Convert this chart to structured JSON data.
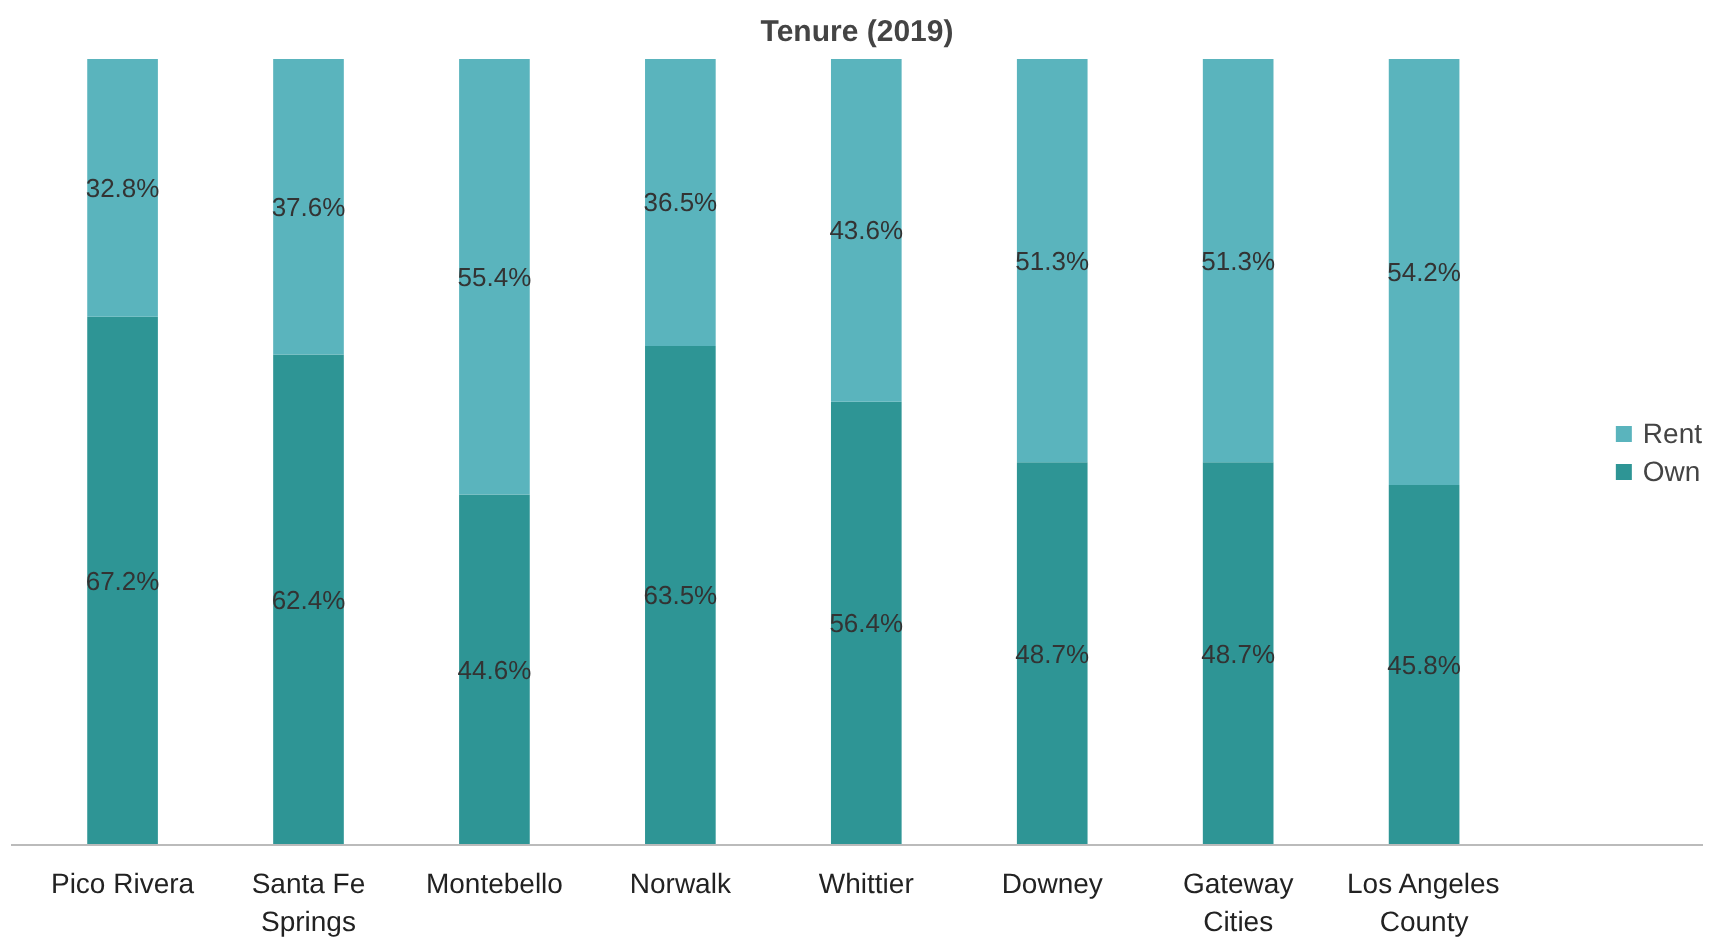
{
  "chart_data": {
    "type": "bar",
    "title": "Tenure (2019)",
    "stacked": true,
    "categories": [
      "Pico Rivera",
      "Santa Fe Springs",
      "Montebello",
      "Norwalk",
      "Whittier",
      "Downey",
      "Gateway Cities",
      "Los Angeles County"
    ],
    "series": [
      {
        "name": "Own",
        "color": "#2e9595",
        "values": [
          67.2,
          62.4,
          44.6,
          63.5,
          56.4,
          48.7,
          48.7,
          45.8
        ],
        "value_labels": [
          "67.2%",
          "62.4%",
          "44.6%",
          "63.5%",
          "56.4%",
          "48.7%",
          "48.7%",
          "45.8%"
        ]
      },
      {
        "name": "Rent",
        "color": "#5ab4bd",
        "values": [
          32.8,
          37.6,
          55.4,
          36.5,
          43.6,
          51.3,
          51.3,
          54.2
        ],
        "value_labels": [
          "32.8%",
          "37.6%",
          "55.4%",
          "36.5%",
          "43.6%",
          "51.3%",
          "51.3%",
          "54.2%"
        ]
      }
    ],
    "ylim": [
      0,
      100
    ],
    "tick_labels": "x",
    "grid": false,
    "legend": "right"
  }
}
